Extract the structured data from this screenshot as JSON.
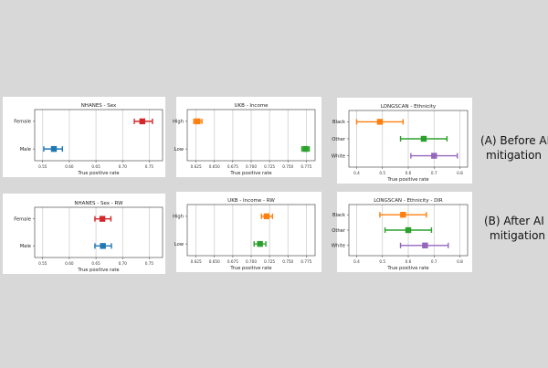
{
  "row_labels": [
    {
      "line1": "(A) Before AI",
      "line2": "mitigation"
    },
    {
      "line1": "(B) After AI",
      "line2": "mitigation"
    }
  ],
  "chart_data": [
    {
      "type": "scatter",
      "title": "NHANES - Sex",
      "xlabel": "True positive rate",
      "ylabel": "",
      "categories": [
        "Female",
        "Male"
      ],
      "xlim": [
        0.535,
        0.775
      ],
      "xticks": [
        "0.55",
        "0.60",
        "0.65",
        "0.70",
        "0.75"
      ],
      "xtick_values": [
        0.55,
        0.6,
        0.65,
        0.7,
        0.75
      ],
      "grid": true,
      "series": [
        {
          "category": "Female",
          "center": 0.737,
          "low": 0.722,
          "high": 0.756,
          "color": "#d62728"
        },
        {
          "category": "Male",
          "center": 0.571,
          "low": 0.552,
          "high": 0.587,
          "color": "#1f77b4"
        }
      ]
    },
    {
      "type": "scatter",
      "title": "UKB - Income",
      "xlabel": "True positive rate",
      "ylabel": "",
      "categories": [
        "High",
        "Low"
      ],
      "xlim": [
        0.613,
        0.787
      ],
      "xticks": [
        "0.625",
        "0.650",
        "0.675",
        "0.700",
        "0.725",
        "0.750",
        "0.775"
      ],
      "xtick_values": [
        0.625,
        0.65,
        0.675,
        0.7,
        0.725,
        0.75,
        0.775
      ],
      "grid": true,
      "series": [
        {
          "category": "High",
          "center": 0.627,
          "low": 0.622,
          "high": 0.633,
          "color": "#ff7f0e"
        },
        {
          "category": "Low",
          "center": 0.774,
          "low": 0.769,
          "high": 0.779,
          "color": "#2ca02c"
        }
      ]
    },
    {
      "type": "scatter",
      "title": "LONGSCAN - Ethnicity",
      "xlabel": "True positive rate",
      "ylabel": "",
      "categories": [
        "Black",
        "Other",
        "White"
      ],
      "xlim": [
        0.37,
        0.83
      ],
      "xticks": [
        "0.4",
        "0.5",
        "0.6",
        "0.7",
        "0.8"
      ],
      "xtick_values": [
        0.4,
        0.5,
        0.6,
        0.7,
        0.8
      ],
      "grid": true,
      "series": [
        {
          "category": "Black",
          "center": 0.49,
          "low": 0.4,
          "high": 0.58,
          "color": "#ff7f0e"
        },
        {
          "category": "Other",
          "center": 0.66,
          "low": 0.57,
          "high": 0.75,
          "color": "#2ca02c"
        },
        {
          "category": "White",
          "center": 0.7,
          "low": 0.61,
          "high": 0.79,
          "color": "#9467bd"
        }
      ]
    },
    {
      "type": "scatter",
      "title": "NHANES - Sex - RW",
      "xlabel": "True positive rate",
      "ylabel": "",
      "categories": [
        "Female",
        "Male"
      ],
      "xlim": [
        0.535,
        0.775
      ],
      "xticks": [
        "0.55",
        "0.60",
        "0.65",
        "0.70",
        "0.75"
      ],
      "xtick_values": [
        0.55,
        0.6,
        0.65,
        0.7,
        0.75
      ],
      "grid": true,
      "series": [
        {
          "category": "Female",
          "center": 0.662,
          "low": 0.648,
          "high": 0.678,
          "color": "#d62728"
        },
        {
          "category": "Male",
          "center": 0.663,
          "low": 0.648,
          "high": 0.679,
          "color": "#1f77b4"
        }
      ]
    },
    {
      "type": "scatter",
      "title": "UKB - Income - RW",
      "xlabel": "True positive rate",
      "ylabel": "",
      "categories": [
        "High",
        "Low"
      ],
      "xlim": [
        0.613,
        0.787
      ],
      "xticks": [
        "0.625",
        "0.650",
        "0.675",
        "0.700",
        "0.725",
        "0.750",
        "0.775"
      ],
      "xtick_values": [
        0.625,
        0.65,
        0.675,
        0.7,
        0.725,
        0.75,
        0.775
      ],
      "grid": true,
      "series": [
        {
          "category": "High",
          "center": 0.721,
          "low": 0.714,
          "high": 0.729,
          "color": "#ff7f0e"
        },
        {
          "category": "Low",
          "center": 0.712,
          "low": 0.704,
          "high": 0.72,
          "color": "#2ca02c"
        }
      ]
    },
    {
      "type": "scatter",
      "title": "LONGSCAN - Ethnicity - DIR",
      "xlabel": "True positive rate",
      "ylabel": "",
      "categories": [
        "Black",
        "Other",
        "White"
      ],
      "xlim": [
        0.37,
        0.83
      ],
      "xticks": [
        "0.4",
        "0.5",
        "0.6",
        "0.7",
        "0.8"
      ],
      "xtick_values": [
        0.4,
        0.5,
        0.6,
        0.7,
        0.8
      ],
      "grid": true,
      "series": [
        {
          "category": "Black",
          "center": 0.58,
          "low": 0.49,
          "high": 0.67,
          "color": "#ff7f0e"
        },
        {
          "category": "Other",
          "center": 0.6,
          "low": 0.51,
          "high": 0.69,
          "color": "#2ca02c"
        },
        {
          "category": "White",
          "center": 0.665,
          "low": 0.57,
          "high": 0.755,
          "color": "#9467bd"
        }
      ]
    }
  ]
}
